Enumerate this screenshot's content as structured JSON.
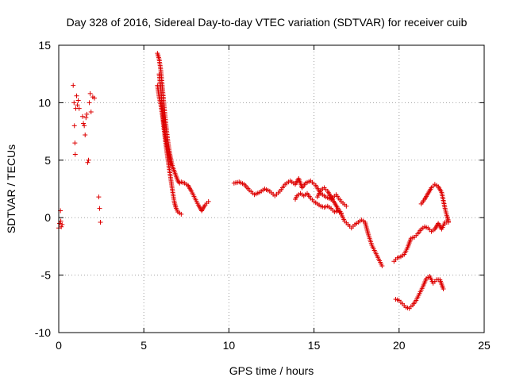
{
  "chart_data": {
    "type": "scatter",
    "title": "Day 328 of 2016, Sidereal Day-to-day VTEC variation (SDTVAR) for receiver cuib",
    "xlabel": "GPS time / hours",
    "ylabel": "SDTVAR / TECUs",
    "xlim": [
      0,
      25
    ],
    "ylim": [
      -10,
      15
    ],
    "xticks": [
      0,
      5,
      10,
      15,
      20,
      25
    ],
    "yticks": [
      -10,
      -5,
      0,
      5,
      10,
      15
    ],
    "xtick_labels": [
      "0",
      "5",
      "10",
      "15",
      "20",
      "25"
    ],
    "ytick_labels": [
      "-10",
      "-5",
      "0",
      "5",
      "10",
      "15"
    ],
    "grid": true,
    "marker": "+",
    "color": "#dd0000",
    "series": [
      {
        "name": "SDTVAR",
        "x": [
          0.0,
          0.05,
          0.1,
          0.12,
          0.15,
          0.2,
          0.85,
          0.9,
          0.92,
          0.95,
          0.97,
          1.0,
          1.05,
          1.1,
          1.15,
          1.2,
          1.4,
          1.45,
          1.5,
          1.55,
          1.6,
          1.65,
          1.7,
          1.75,
          1.8,
          1.85,
          1.9,
          2.0,
          2.1,
          2.35,
          2.4,
          2.45
        ],
        "y": [
          -0.9,
          -0.5,
          0.6,
          -0.3,
          -0.8,
          -0.6,
          11.5,
          10.0,
          8.0,
          6.5,
          5.5,
          9.5,
          10.6,
          9.8,
          10.2,
          9.5,
          8.8,
          8.2,
          8.0,
          7.2,
          8.7,
          9.0,
          4.8,
          5.0,
          10.0,
          10.8,
          9.2,
          10.5,
          10.4,
          1.8,
          0.8,
          -0.4
        ],
        "segments": [
          {
            "x": [
              5.8,
              5.9,
              6.0,
              6.1,
              6.2,
              6.3,
              6.4,
              6.5,
              6.6,
              6.7,
              6.8,
              6.9,
              7.0,
              7.1,
              7.2,
              7.4,
              7.6,
              7.8,
              8.0,
              8.2,
              8.4,
              8.6,
              8.8
            ],
            "y": [
              14.3,
              13.8,
              12.8,
              11.2,
              9.6,
              8.1,
              6.8,
              5.8,
              5.0,
              4.4,
              4.0,
              3.6,
              3.2,
              3.0,
              3.1,
              3.0,
              2.8,
              2.3,
              1.7,
              1.1,
              0.6,
              1.1,
              1.4
            ]
          },
          {
            "x": [
              5.8,
              5.9,
              6.0,
              6.1,
              6.2,
              6.3,
              6.4,
              6.5,
              6.6,
              6.7,
              6.8,
              6.9,
              7.0,
              7.1,
              7.2
            ],
            "y": [
              11.5,
              10.5,
              9.8,
              8.8,
              7.5,
              6.3,
              5.2,
              4.2,
              3.2,
              2.2,
              1.3,
              0.8,
              0.5,
              0.4,
              0.3
            ]
          },
          {
            "x": [
              5.9,
              6.0,
              6.1,
              6.2,
              6.3,
              6.4,
              6.5,
              6.6
            ],
            "y": [
              12.5,
              11.2,
              9.2,
              8.0,
              6.8,
              5.9,
              5.2,
              4.6
            ]
          },
          {
            "x": [
              10.3,
              10.6,
              10.9,
              11.2,
              11.5,
              11.8,
              12.1,
              12.4,
              12.7,
              13.0,
              13.3,
              13.6,
              13.9,
              14.1,
              14.3,
              14.5,
              14.8,
              15.1,
              15.4,
              15.7,
              16.0,
              16.3,
              16.6,
              16.9
            ],
            "y": [
              3.0,
              3.1,
              2.9,
              2.4,
              2.0,
              2.2,
              2.5,
              2.3,
              1.9,
              2.3,
              2.9,
              3.2,
              2.9,
              3.4,
              2.6,
              3.0,
              3.2,
              2.8,
              2.1,
              1.8,
              1.6,
              2.0,
              1.4,
              1.0
            ]
          },
          {
            "x": [
              13.9,
              14.0,
              14.2,
              14.4,
              14.6,
              14.8,
              15.0,
              15.2,
              15.4,
              15.6,
              15.8,
              16.0,
              16.2,
              16.4,
              16.6,
              16.8,
              17.0
            ],
            "y": [
              1.6,
              1.9,
              2.1,
              1.9,
              2.1,
              1.7,
              1.4,
              1.2,
              1.0,
              0.9,
              1.0,
              0.8,
              0.5,
              0.6,
              0.3,
              -0.3,
              -0.6
            ]
          },
          {
            "x": [
              15.2,
              15.4,
              15.6,
              15.8,
              16.0,
              16.2,
              16.4,
              16.6
            ],
            "y": [
              1.8,
              2.4,
              2.6,
              2.3,
              1.8,
              1.3,
              0.8,
              0.4
            ]
          },
          {
            "x": [
              17.0,
              17.2,
              17.4,
              17.6,
              17.8,
              18.0,
              18.2,
              18.4,
              18.6,
              18.8,
              19.0
            ],
            "y": [
              -0.6,
              -0.9,
              -0.6,
              -0.4,
              -0.2,
              -0.4,
              -1.5,
              -2.4,
              -3.0,
              -3.6,
              -4.2
            ]
          },
          {
            "x": [
              19.7,
              19.9,
              20.1,
              20.3,
              20.5,
              20.7,
              20.9,
              21.1,
              21.3,
              21.5,
              21.7,
              21.9,
              22.1,
              22.3,
              22.5,
              22.7,
              22.9
            ],
            "y": [
              -3.8,
              -3.5,
              -3.4,
              -3.2,
              -2.6,
              -1.8,
              -1.7,
              -1.4,
              -1.0,
              -0.8,
              -0.9,
              -1.2,
              -1.0,
              -0.5,
              -1.0,
              -0.4,
              -0.4
            ]
          },
          {
            "x": [
              21.3,
              21.5,
              21.7,
              21.9,
              22.1,
              22.3,
              22.5,
              22.6,
              22.7,
              22.8,
              22.9
            ],
            "y": [
              1.2,
              1.6,
              2.1,
              2.6,
              2.9,
              2.7,
              2.2,
              1.5,
              0.8,
              0.2,
              -0.3
            ]
          },
          {
            "x": [
              19.8,
              20.0,
              20.2,
              20.4,
              20.6,
              20.8,
              21.0,
              21.2,
              21.4,
              21.6,
              21.8,
              22.0,
              22.2,
              22.4,
              22.6
            ],
            "y": [
              -7.1,
              -7.2,
              -7.5,
              -7.8,
              -7.9,
              -7.6,
              -7.2,
              -6.6,
              -6.0,
              -5.3,
              -5.1,
              -5.7,
              -5.4,
              -5.4,
              -6.2
            ]
          }
        ]
      }
    ]
  }
}
